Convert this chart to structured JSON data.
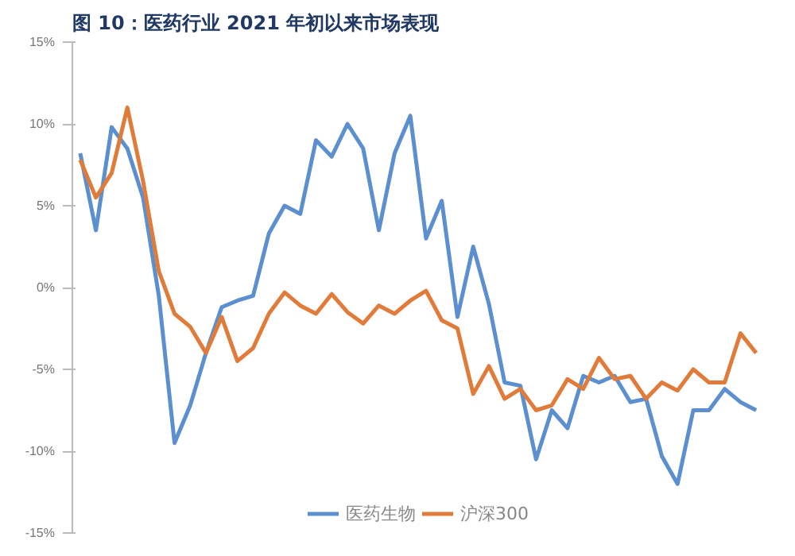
{
  "chart_data": {
    "type": "line",
    "title": "图 10：医药行业 2021 年初以来市场表现",
    "categories": [
      null,
      null,
      null,
      null,
      null,
      null,
      null,
      null,
      null,
      null,
      null,
      null,
      null,
      null,
      null,
      null,
      null,
      null,
      null,
      null,
      null,
      null,
      null,
      null,
      null,
      null,
      null,
      null,
      null,
      null,
      null,
      null,
      null,
      null,
      null,
      null,
      null,
      null,
      null,
      null,
      null,
      null,
      null,
      null
    ],
    "series": [
      {
        "name": "医药生物",
        "color": "#5b8fd0",
        "values": [
          8.2,
          3.5,
          9.8,
          8.5,
          5.5,
          -0.5,
          -9.5,
          -7.2,
          -4,
          -1.2,
          -0.8,
          -0.5,
          3.3,
          5,
          4.5,
          9,
          8,
          10,
          8.5,
          3.5,
          8.2,
          10.5,
          3,
          5.3,
          -1.8,
          2.5,
          -1,
          -5.8,
          -6,
          -10.5,
          -7.5,
          -8.6,
          -5.4,
          -5.8,
          -5.4,
          -7,
          -6.8,
          -10.3,
          -12,
          -7.5,
          -7.5,
          -6.2,
          -7,
          -7.5
        ]
      },
      {
        "name": "沪深300",
        "color": "#e07b39",
        "values": [
          7.8,
          5.5,
          7,
          11,
          6.5,
          1,
          -1.6,
          -2.4,
          -4,
          -1.8,
          -4.5,
          -3.7,
          -1.6,
          -0.3,
          -1.1,
          -1.6,
          -0.4,
          -1.5,
          -2.2,
          -1.1,
          -1.6,
          -0.8,
          -0.2,
          -2,
          -2.5,
          -6.5,
          -4.8,
          -6.8,
          -6.2,
          -7.5,
          -7.2,
          -5.6,
          -6.2,
          -4.3,
          -5.6,
          -5.4,
          -6.8,
          -5.8,
          -6.3,
          -5,
          -5.8,
          -5.8,
          -2.8,
          -4
        ]
      }
    ],
    "ylim": [
      -15,
      15
    ],
    "yticks": [
      {
        "value": 15,
        "label": "15%"
      },
      {
        "value": 10,
        "label": "10%"
      },
      {
        "value": 5,
        "label": "5%"
      },
      {
        "value": 0,
        "label": "0%"
      },
      {
        "value": -5,
        "label": "-5%"
      },
      {
        "value": -10,
        "label": "-10%"
      },
      {
        "value": -15,
        "label": "-15%"
      }
    ],
    "tick_labels": "y",
    "grid": false,
    "legend": "bottom",
    "line_style": "solid"
  }
}
